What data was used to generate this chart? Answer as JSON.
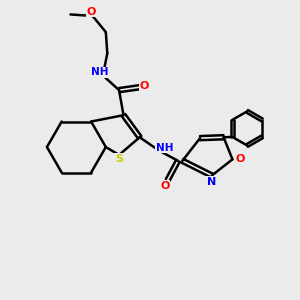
{
  "background_color": "#ebebeb",
  "atom_colors": {
    "C": "#000000",
    "H": "#4a8080",
    "N": "#0000ff",
    "O": "#ff0000",
    "S": "#cccc00"
  },
  "bond_color": "#000000",
  "bond_width": 1.8,
  "figsize": [
    3.0,
    3.0
  ],
  "dpi": 100
}
